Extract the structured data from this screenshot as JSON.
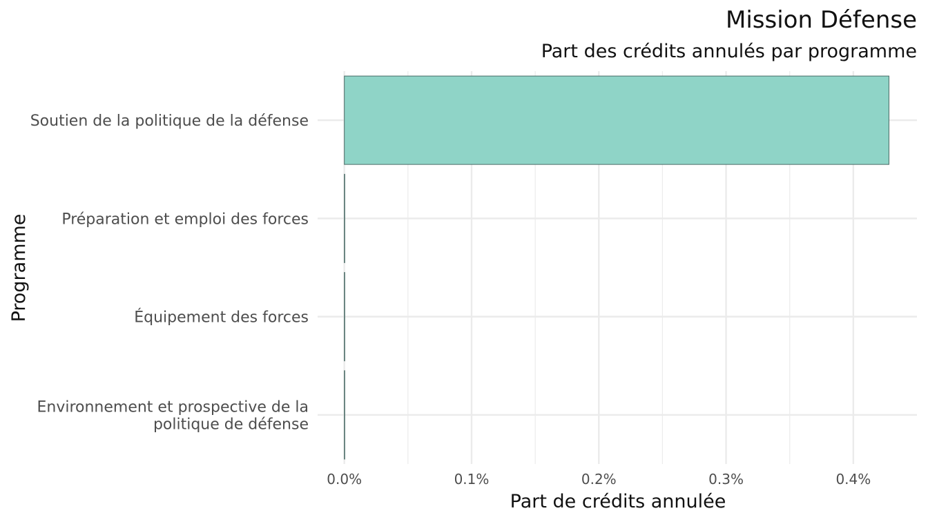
{
  "chart_data": {
    "type": "bar",
    "orientation": "horizontal",
    "title": "Mission Défense",
    "subtitle": "Part des crédits annulés par programme",
    "xlabel": "Part de crédits annulée",
    "ylabel": "Programme",
    "categories": [
      [
        "Soutien de la politique de la défense"
      ],
      [
        "Préparation et emploi des forces"
      ],
      [
        "Équipement des forces"
      ],
      [
        "Environnement et prospective de la",
        "politique de défense"
      ]
    ],
    "values": [
      0.428,
      0.0,
      0.0,
      0.0
    ],
    "value_unit": "%",
    "xlim": [
      -0.021,
      0.45
    ],
    "x_ticks": [
      0.0,
      0.1,
      0.2,
      0.3,
      0.4
    ],
    "x_tick_labels": [
      "0.0%",
      "0.1%",
      "0.2%",
      "0.3%",
      "0.4%"
    ],
    "grid": true,
    "bar_color": "#8fd4c7",
    "bar_outline_color": "#4a6b66",
    "grid_color": "#ebebeb"
  }
}
